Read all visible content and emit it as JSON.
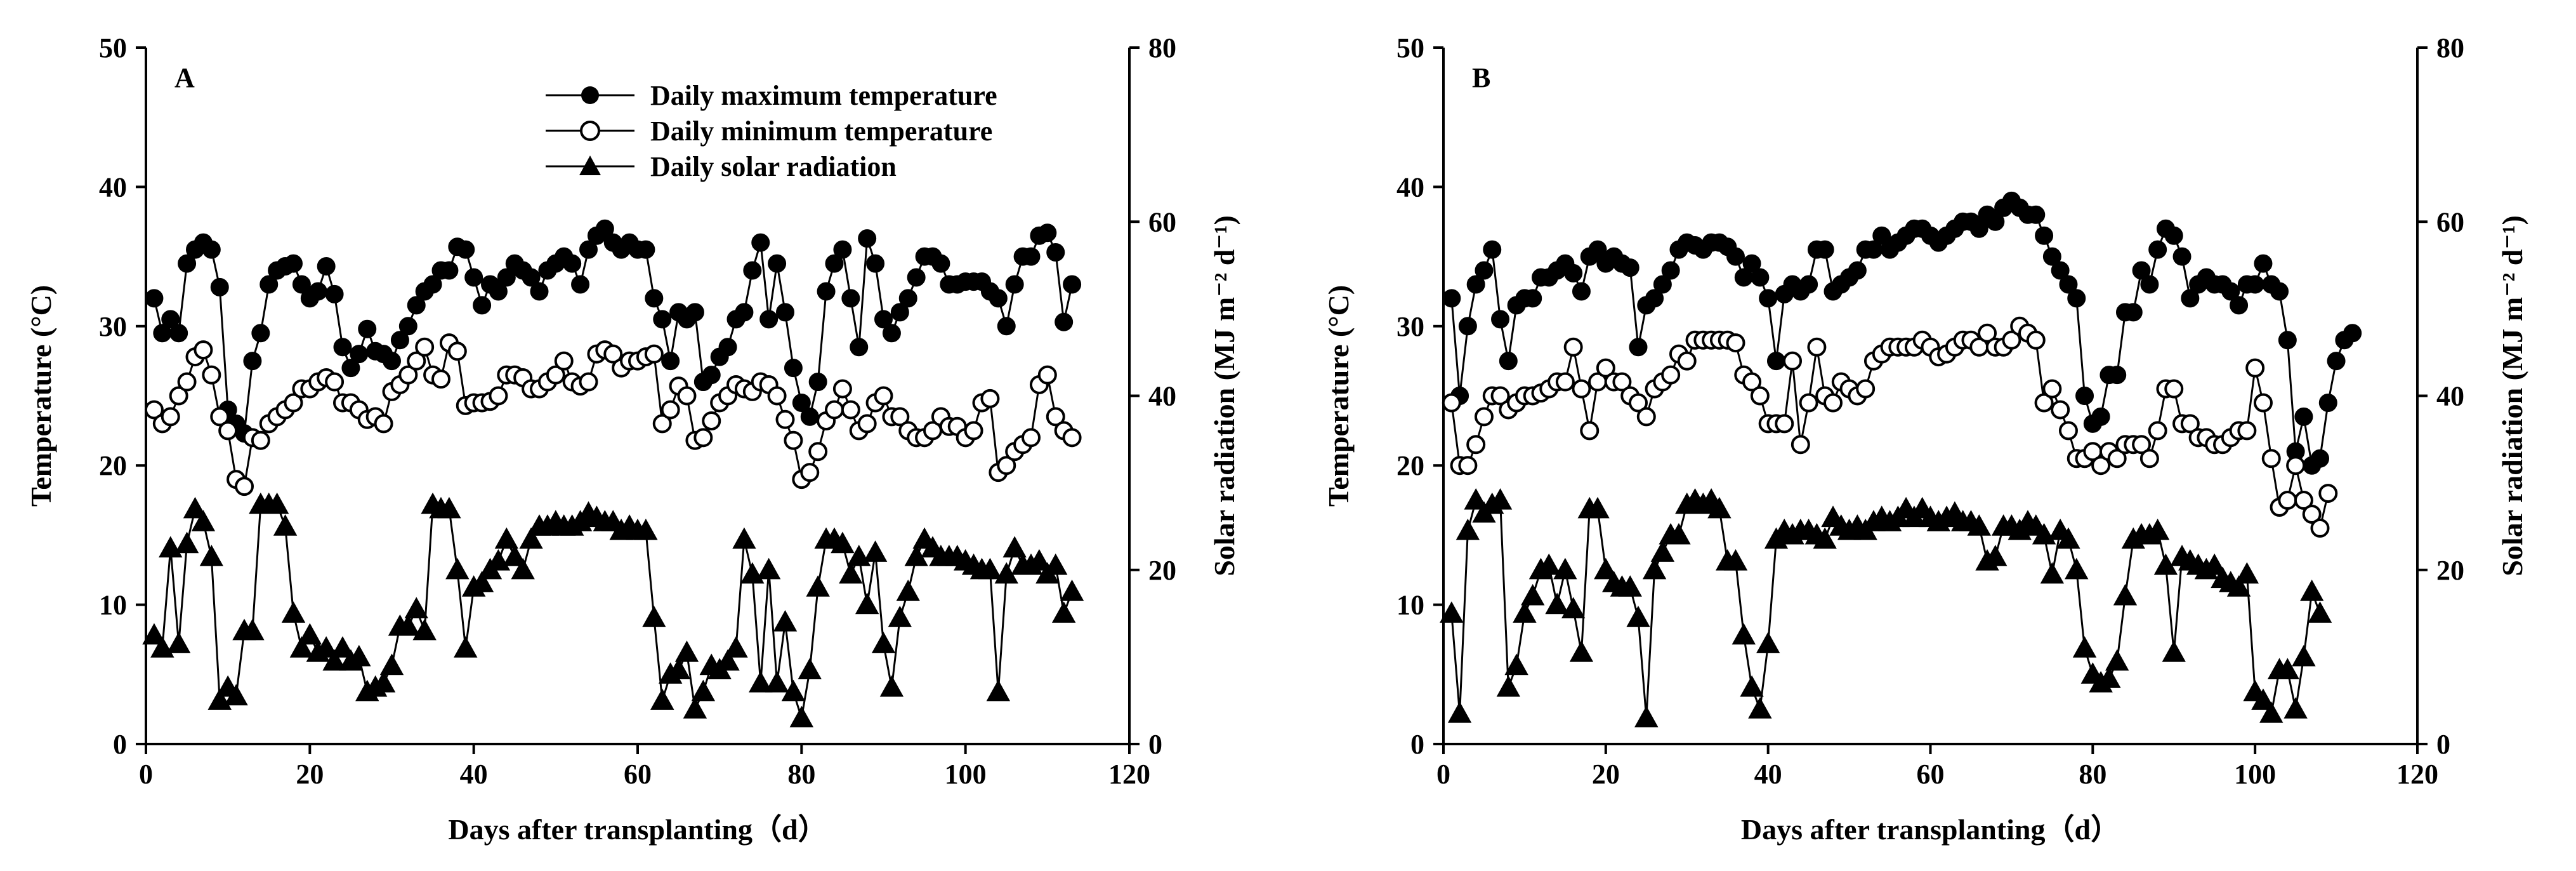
{
  "chart_data": [
    {
      "type": "line",
      "panel_label": "A",
      "xlabel": "Days after transplanting（d）",
      "ylabel": "Temperature (°C)",
      "ylabel2": "Solar radiation (MJ m⁻² d⁻¹)",
      "xlim": [
        0,
        120
      ],
      "ylim": [
        0,
        50
      ],
      "y2lim": [
        0,
        80
      ],
      "xticks": [
        0,
        20,
        40,
        60,
        80,
        100,
        120
      ],
      "yticks": [
        0,
        10,
        20,
        30,
        40,
        50
      ],
      "y2ticks": [
        0,
        20,
        40,
        60,
        80
      ],
      "legend": [
        "Daily maximum temperature",
        "Daily minimum temperature",
        "Daily solar radiation"
      ],
      "series": [
        {
          "name": "Daily maximum temperature",
          "axis": "left",
          "marker": "filled-circle",
          "values": [
            32,
            29.5,
            30.5,
            29.5,
            34.5,
            35.5,
            36,
            35.5,
            32.8,
            24,
            23,
            22.3,
            27.5,
            29.5,
            33,
            34,
            34.3,
            34.5,
            33,
            32,
            32.5,
            34.3,
            32.3,
            28.5,
            27,
            28,
            29.8,
            28.2,
            28,
            27.5,
            29,
            30,
            31.5,
            32.5,
            33,
            34,
            34,
            35.7,
            35.5,
            33.5,
            31.5,
            33,
            32.5,
            33.5,
            34.5,
            34,
            33.5,
            32.5,
            34,
            34.5,
            35,
            34.5,
            33,
            35.5,
            36.5,
            37,
            36,
            35.5,
            36,
            35.5,
            35.5,
            32,
            30.5,
            27.5,
            31,
            30.5,
            31,
            26,
            26.5,
            27.8,
            28.5,
            30.5,
            31,
            34,
            36,
            30.5,
            34.5,
            31,
            27,
            24.5,
            23.5,
            26,
            32.5,
            34.5,
            35.5,
            32,
            28.5,
            36.3,
            34.5,
            30.5,
            29.5,
            31,
            32,
            33.5,
            35,
            35,
            34.5,
            33,
            33,
            33.2,
            33.2,
            33.2,
            32.5,
            32,
            30,
            33,
            35,
            35,
            36.5,
            36.7,
            35.3,
            30.3,
            33
          ]
        },
        {
          "name": "Daily minimum temperature",
          "axis": "left",
          "marker": "open-circle",
          "values": [
            24,
            23,
            23.5,
            25,
            26,
            27.8,
            28.3,
            26.5,
            23.5,
            22.5,
            19,
            18.5,
            22,
            21.8,
            23,
            23.5,
            24,
            24.5,
            25.5,
            25.5,
            26,
            26.3,
            26,
            24.5,
            24.5,
            24,
            23.3,
            23.5,
            23,
            25.3,
            25.8,
            26.5,
            27.5,
            28.5,
            26.5,
            26.2,
            28.8,
            28.2,
            24.3,
            24.5,
            24.5,
            24.6,
            25,
            26.5,
            26.5,
            26.3,
            25.5,
            25.5,
            26,
            26.5,
            27.5,
            26,
            25.7,
            26,
            28,
            28.3,
            28,
            27,
            27.5,
            27.5,
            27.8,
            28,
            23,
            24,
            25.7,
            25,
            21.8,
            22,
            23.2,
            24.5,
            25,
            25.8,
            25.5,
            25.3,
            26,
            25.8,
            25,
            23.3,
            21.8,
            19,
            19.5,
            21,
            23.2,
            24,
            25.5,
            24,
            22.5,
            23,
            24.5,
            25,
            23.5,
            23.5,
            22.5,
            22,
            22,
            22.5,
            23.5,
            22.8,
            22.8,
            22,
            22.5,
            24.5,
            24.8,
            19.5,
            20,
            21,
            21.5,
            22,
            25.8,
            26.5,
            23.5,
            22.5,
            22
          ]
        },
        {
          "name": "Daily solar radiation",
          "axis": "right",
          "marker": "filled-triangle",
          "values": [
            12.5,
            11,
            22.5,
            11.5,
            23,
            27,
            25.5,
            21.5,
            5,
            6.5,
            5.5,
            13,
            13,
            27.5,
            27.5,
            27.5,
            25,
            15,
            11,
            12.5,
            10.5,
            11,
            9.5,
            11,
            9.5,
            10,
            6,
            6.5,
            7,
            9,
            13.5,
            13.5,
            15.5,
            13,
            27.5,
            27,
            27,
            20,
            11,
            18,
            18.5,
            20,
            21,
            23.5,
            21.5,
            20,
            23.5,
            25,
            25,
            25.5,
            25,
            25,
            25.5,
            26.5,
            26,
            25.5,
            25.5,
            24.5,
            25,
            24.5,
            24.5,
            14.5,
            5,
            8,
            8.5,
            10.5,
            4,
            6,
            9,
            8.5,
            9.5,
            11,
            23.5,
            19.5,
            7,
            20,
            7,
            14,
            6,
            3,
            8.5,
            18,
            23.5,
            23.5,
            23,
            19.5,
            21.5,
            16,
            22,
            11.5,
            6.5,
            14.5,
            17.5,
            21.5,
            23.5,
            22.5,
            21.5,
            21.5,
            21.5,
            21,
            20.5,
            20,
            20,
            6,
            19.5,
            22.5,
            20.5,
            20.5,
            21,
            19.5,
            20.5,
            15,
            17.5
          ]
        }
      ]
    },
    {
      "type": "line",
      "panel_label": "B",
      "xlabel": "Days after transplanting（d）",
      "ylabel": "Temperature (°C)",
      "ylabel2": "Solar radiation (MJ m⁻² d⁻¹)",
      "xlim": [
        0,
        120
      ],
      "ylim": [
        0,
        50
      ],
      "y2lim": [
        0,
        80
      ],
      "xticks": [
        0,
        20,
        40,
        60,
        80,
        100,
        120
      ],
      "yticks": [
        0,
        10,
        20,
        30,
        40,
        50
      ],
      "y2ticks": [
        0,
        20,
        40,
        60,
        80
      ],
      "series": [
        {
          "name": "Daily maximum temperature",
          "axis": "left",
          "marker": "filled-circle",
          "values": [
            32,
            25,
            30,
            33,
            34,
            35.5,
            30.5,
            27.5,
            31.5,
            32,
            32,
            33.5,
            33.5,
            34,
            34.5,
            33.8,
            32.5,
            35,
            35.5,
            34.5,
            35,
            34.5,
            34.2,
            28.5,
            31.5,
            32,
            33,
            34,
            35.5,
            36,
            35.8,
            35.5,
            36,
            36,
            35.7,
            35,
            33.5,
            34.5,
            33.5,
            32,
            27.5,
            32.3,
            33,
            32.5,
            33,
            35.5,
            35.5,
            32.5,
            33,
            33.5,
            34,
            35.5,
            35.5,
            36.5,
            35.5,
            36,
            36.5,
            37,
            37,
            36.5,
            36,
            36.5,
            37,
            37.5,
            37.5,
            37,
            38,
            37.5,
            38.5,
            39,
            38.5,
            38,
            38,
            36.5,
            35,
            34,
            33,
            32,
            25,
            23,
            23.5,
            26.5,
            26.5,
            31,
            31,
            34,
            33,
            35.5,
            37,
            36.5,
            35,
            32,
            33,
            33.5,
            33,
            33,
            32.5,
            31.5,
            33,
            33,
            34.5,
            33,
            32.5,
            29,
            21,
            23.5,
            20,
            20.5,
            24.5,
            27.5,
            29,
            29.5
          ]
        },
        {
          "name": "Daily minimum temperature",
          "axis": "left",
          "marker": "open-circle",
          "values": [
            24.5,
            20,
            20,
            21.5,
            23.5,
            25,
            25,
            24,
            24.5,
            25,
            25,
            25.2,
            25.5,
            26,
            26,
            28.5,
            25.5,
            22.5,
            26,
            27,
            26,
            26,
            25,
            24.5,
            23.5,
            25.5,
            26,
            26.5,
            28,
            27.5,
            29,
            29,
            29,
            29,
            29,
            28.8,
            26.5,
            26,
            25,
            23,
            23,
            23,
            27.5,
            21.5,
            24.5,
            28.5,
            25,
            24.5,
            26,
            25.5,
            25,
            25.5,
            27.5,
            28,
            28.5,
            28.5,
            28.5,
            28.5,
            29,
            28.5,
            27.8,
            28,
            28.5,
            29,
            29,
            28.5,
            29.5,
            28.5,
            28.5,
            29,
            30,
            29.5,
            29,
            24.5,
            25.5,
            24,
            22.5,
            20.5,
            20.5,
            21,
            20,
            21,
            20.5,
            21.5,
            21.5,
            21.5,
            20.5,
            22.5,
            25.5,
            25.5,
            23,
            23,
            22,
            22,
            21.5,
            21.5,
            22,
            22.5,
            22.5,
            27,
            24.5,
            20.5,
            17,
            17.5,
            20,
            17.5,
            16.5,
            15.5,
            18
          ]
        },
        {
          "name": "Daily solar radiation",
          "axis": "right",
          "marker": "filled-triangle",
          "values": [
            15,
            3.5,
            24.5,
            28,
            26.5,
            27.5,
            28,
            6.5,
            9,
            15,
            17,
            20,
            20.5,
            16,
            20,
            15.5,
            10.5,
            27,
            27,
            20,
            18.5,
            18,
            18,
            14.5,
            3,
            20,
            22,
            24,
            24,
            27.5,
            28,
            27.5,
            28,
            27,
            21,
            21,
            12.5,
            6.5,
            4,
            11.5,
            23.5,
            24.5,
            24,
            24.5,
            24.5,
            24,
            23.5,
            26,
            25,
            24.5,
            25,
            24.5,
            25.5,
            26,
            25.5,
            26,
            27,
            26,
            27,
            26,
            25.5,
            26,
            26.5,
            25.5,
            25.5,
            25,
            21,
            21.5,
            25,
            25,
            24.5,
            25.5,
            25,
            24,
            19.5,
            24.5,
            23.5,
            20,
            11,
            8,
            7,
            7.5,
            9.5,
            17,
            23.5,
            24,
            24,
            24.5,
            20.5,
            10.5,
            21.5,
            21,
            20.5,
            20,
            20.5,
            19,
            18.5,
            18,
            19.5,
            6,
            5,
            3.5,
            8.5,
            8.5,
            4,
            10,
            17.5,
            15
          ]
        }
      ]
    }
  ]
}
